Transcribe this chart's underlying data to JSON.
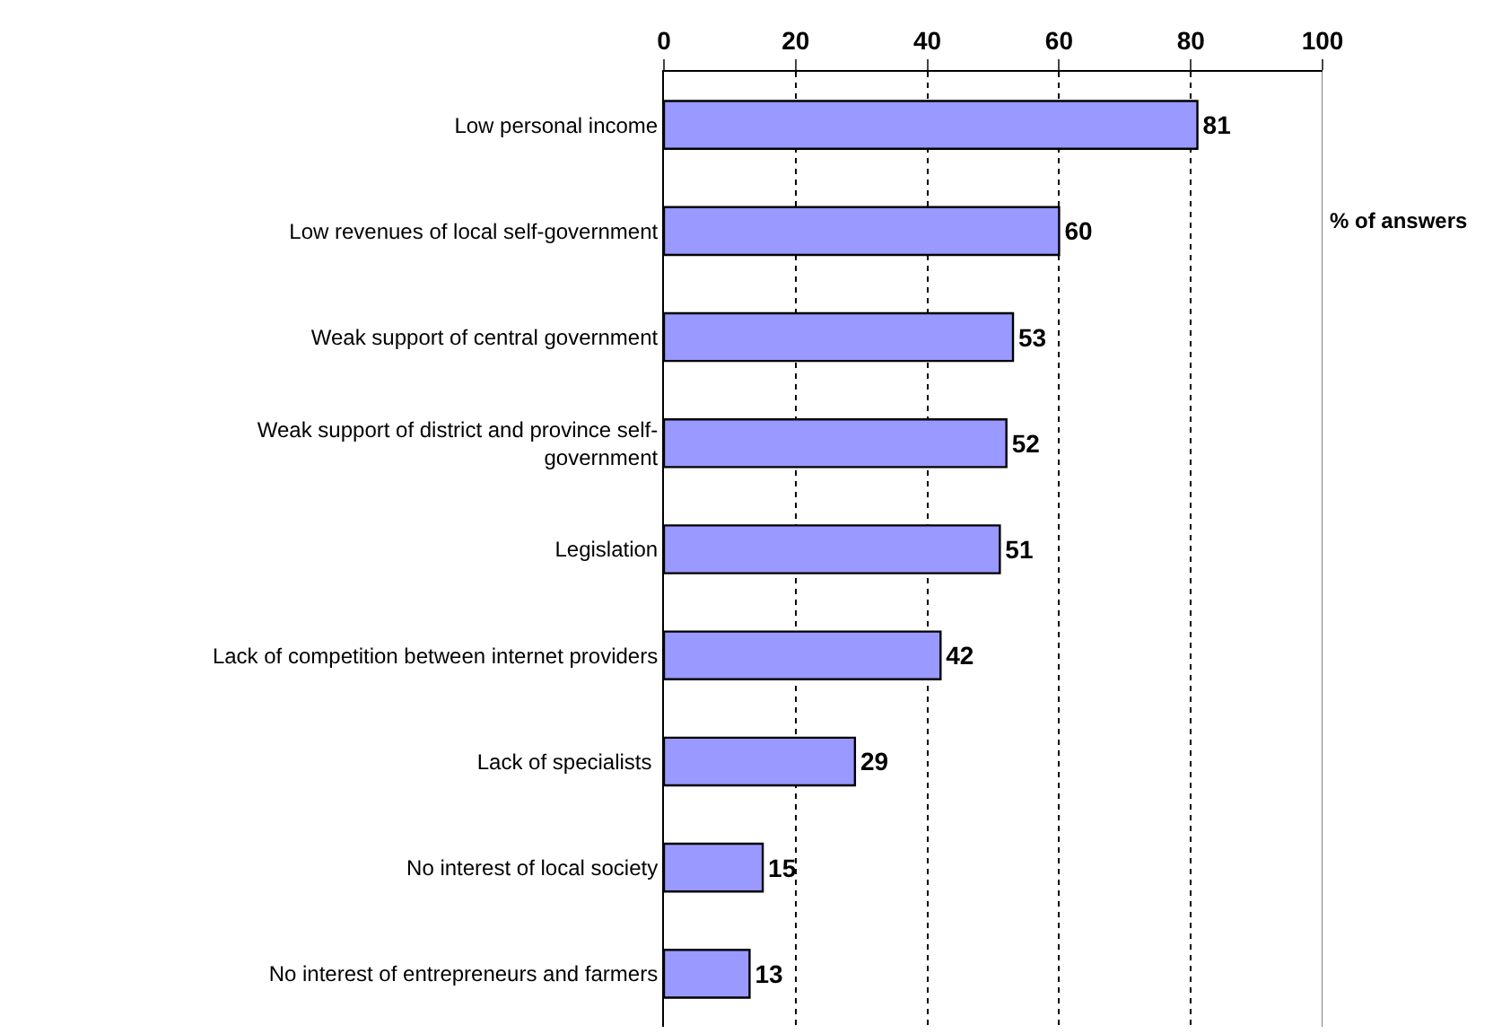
{
  "chart_data": {
    "type": "bar",
    "orientation": "horizontal",
    "xlabel": "% of answers",
    "categories": [
      "Low personal income",
      "Low revenues of local self-government",
      "Weak support of central government",
      "Weak support of district and province self-\ngovernment",
      "Legislation",
      "Lack of competition between internet providers",
      "Lack of specialists ",
      "No interest of local society",
      "No interest of entrepreneurs and farmers"
    ],
    "values": [
      81,
      60,
      53,
      52,
      51,
      42,
      29,
      15,
      13
    ],
    "color": "#9999ff",
    "xlim": [
      0,
      100
    ],
    "xticks": [
      0,
      20,
      40,
      60,
      80,
      100
    ],
    "grid": "x",
    "line_style": "dotted",
    "data_labels": true
  }
}
